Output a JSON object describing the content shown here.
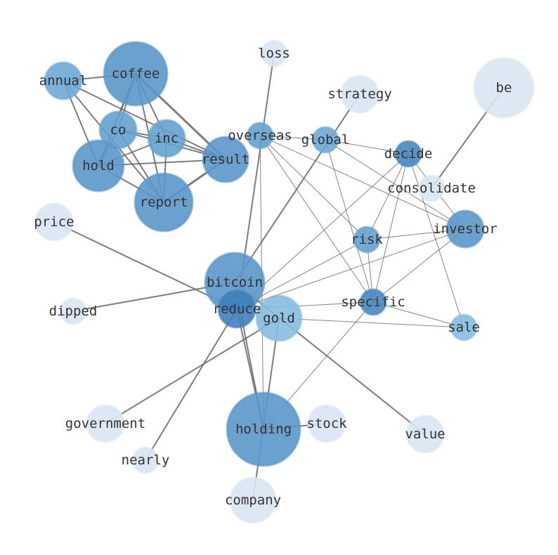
{
  "nodes": [
    {
      "id": "coffee",
      "label": "coffee",
      "color": "#5b97c9"
    },
    {
      "id": "annual",
      "label": "annual",
      "color": "#6eaad6"
    },
    {
      "id": "co",
      "label": "co",
      "color": "#65a2d0"
    },
    {
      "id": "inc",
      "label": "inc",
      "color": "#65a2d0"
    },
    {
      "id": "hold",
      "label": "hold",
      "color": "#5b97c9"
    },
    {
      "id": "result",
      "label": "result",
      "color": "#5b97c9"
    },
    {
      "id": "report",
      "label": "report",
      "color": "#5b97c9"
    },
    {
      "id": "loss",
      "label": "loss",
      "color": "#dae6f4"
    },
    {
      "id": "strategy",
      "label": "strategy",
      "color": "#dae6f4"
    },
    {
      "id": "be",
      "label": "be",
      "color": "#dae6f4"
    },
    {
      "id": "overseas",
      "label": "overseas",
      "color": "#65a2d0"
    },
    {
      "id": "global",
      "label": "global",
      "color": "#6eaad6"
    },
    {
      "id": "decide",
      "label": "decide",
      "color": "#4a87c0"
    },
    {
      "id": "consolidate",
      "label": "consolidate",
      "color": "#dae6f4"
    },
    {
      "id": "investor",
      "label": "investor",
      "color": "#5b97c9"
    },
    {
      "id": "risk",
      "label": "risk",
      "color": "#65a2d0"
    },
    {
      "id": "price",
      "label": "price",
      "color": "#dae6f4"
    },
    {
      "id": "bitcoin",
      "label": "bitcoin",
      "color": "#5b97c9"
    },
    {
      "id": "reduce",
      "label": "reduce",
      "color": "#3f7fbb"
    },
    {
      "id": "gold",
      "label": "gold",
      "color": "#86bde0"
    },
    {
      "id": "specific",
      "label": "specific",
      "color": "#4a87c0"
    },
    {
      "id": "sale",
      "label": "sale",
      "color": "#86bde0"
    },
    {
      "id": "dipped",
      "label": "dipped",
      "color": "#dae6f4"
    },
    {
      "id": "government",
      "label": "government",
      "color": "#dae6f4"
    },
    {
      "id": "holding",
      "label": "holding",
      "color": "#5b97c9"
    },
    {
      "id": "stock",
      "label": "stock",
      "color": "#dae6f4"
    },
    {
      "id": "value",
      "label": "value",
      "color": "#dae6f4"
    },
    {
      "id": "nearly",
      "label": "nearly",
      "color": "#dae6f4"
    },
    {
      "id": "company",
      "label": "company",
      "color": "#dae6f4"
    }
  ],
  "edges": [
    [
      "coffee",
      "annual",
      2
    ],
    [
      "coffee",
      "hold",
      3
    ],
    [
      "coffee",
      "co",
      2
    ],
    [
      "coffee",
      "inc",
      2
    ],
    [
      "coffee",
      "report",
      2
    ],
    [
      "coffee",
      "result",
      3
    ],
    [
      "annual",
      "hold",
      2
    ],
    [
      "annual",
      "report",
      2
    ],
    [
      "annual",
      "result",
      2
    ],
    [
      "co",
      "inc",
      2
    ],
    [
      "co",
      "result",
      2
    ],
    [
      "co",
      "report",
      2
    ],
    [
      "co",
      "hold",
      2
    ],
    [
      "inc",
      "result",
      2
    ],
    [
      "inc",
      "hold",
      2
    ],
    [
      "inc",
      "report",
      2
    ],
    [
      "hold",
      "result",
      2
    ],
    [
      "hold",
      "report",
      2
    ],
    [
      "report",
      "result",
      3
    ],
    [
      "loss",
      "reduce",
      2
    ],
    [
      "strategy",
      "bitcoin",
      2
    ],
    [
      "be",
      "consolidate",
      2
    ],
    [
      "price",
      "reduce",
      2
    ],
    [
      "dipped",
      "bitcoin",
      2
    ],
    [
      "government",
      "gold",
      2
    ],
    [
      "nearly",
      "reduce",
      2
    ],
    [
      "company",
      "gold",
      2
    ],
    [
      "holding",
      "stock",
      2
    ],
    [
      "holding",
      "bitcoin",
      2
    ],
    [
      "holding",
      "reduce",
      2
    ],
    [
      "value",
      "bitcoin",
      2
    ],
    [
      "overseas",
      "global",
      1
    ],
    [
      "overseas",
      "investor",
      1
    ],
    [
      "overseas",
      "specific",
      1
    ],
    [
      "overseas",
      "risk",
      1
    ],
    [
      "overseas",
      "holding",
      1
    ],
    [
      "global",
      "decide",
      1
    ],
    [
      "global",
      "investor",
      1
    ],
    [
      "global",
      "specific",
      1
    ],
    [
      "decide",
      "risk",
      1
    ],
    [
      "decide",
      "specific",
      1
    ],
    [
      "decide",
      "reduce",
      1
    ],
    [
      "decide",
      "investor",
      1
    ],
    [
      "decide",
      "sale",
      1
    ],
    [
      "risk",
      "investor",
      1
    ],
    [
      "risk",
      "specific",
      1
    ],
    [
      "risk",
      "reduce",
      1
    ],
    [
      "investor",
      "reduce",
      1
    ],
    [
      "investor",
      "specific",
      1
    ],
    [
      "specific",
      "reduce",
      1
    ],
    [
      "specific",
      "sale",
      1
    ],
    [
      "gold",
      "sale",
      1
    ],
    [
      "specific",
      "holding",
      1
    ]
  ]
}
